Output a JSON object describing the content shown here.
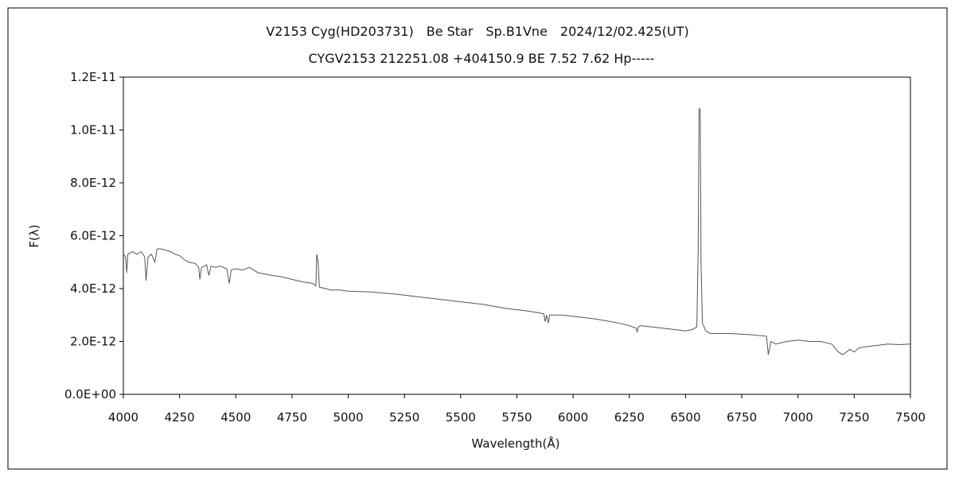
{
  "chart_data": {
    "type": "line",
    "title": "V2153 Cyg(HD203731)　Be Star　Sp.B1Vne　2024/12/02.425(UT)",
    "subtitle": "CYGV2153 212251.08 +404150.9 BE 7.52 7.62 Hp-----",
    "xlabel": "Wavelength(Å)",
    "ylabel": "F(λ)",
    "xlim": [
      4000,
      7500
    ],
    "ylim": [
      0,
      1.2e-11
    ],
    "x_ticks": [
      4000,
      4250,
      4500,
      4750,
      5000,
      5250,
      5500,
      5750,
      6000,
      6250,
      6500,
      6750,
      7000,
      7250,
      7500
    ],
    "x_tick_labels": [
      "4000",
      "4250",
      "4500",
      "4750",
      "5000",
      "5250",
      "5500",
      "5750",
      "6000",
      "6250",
      "6500",
      "6750",
      "7000",
      "7250",
      "7500"
    ],
    "y_ticks": [
      0,
      2e-12,
      4e-12,
      6e-12,
      8e-12,
      1e-11,
      1.2e-11
    ],
    "y_tick_labels": [
      "0.0E+00",
      "2.0E-12",
      "4.0E-12",
      "6.0E-12",
      "8.0E-12",
      "1.0E-11",
      "1.2E-11"
    ],
    "grid": false,
    "series": [
      {
        "color": "#555555",
        "points": [
          [
            4000,
            5.3e-12
          ],
          [
            4010,
            5.2e-12
          ],
          [
            4015,
            4.6e-12
          ],
          [
            4020,
            5.3e-12
          ],
          [
            4040,
            5.4e-12
          ],
          [
            4060,
            5.3e-12
          ],
          [
            4080,
            5.4e-12
          ],
          [
            4095,
            5.2e-12
          ],
          [
            4101,
            4.3e-12
          ],
          [
            4110,
            5.2e-12
          ],
          [
            4125,
            5.3e-12
          ],
          [
            4140,
            5e-12
          ],
          [
            4150,
            5.5e-12
          ],
          [
            4170,
            5.5e-12
          ],
          [
            4190,
            5.45e-12
          ],
          [
            4210,
            5.4e-12
          ],
          [
            4230,
            5.3e-12
          ],
          [
            4250,
            5.25e-12
          ],
          [
            4270,
            5.1e-12
          ],
          [
            4290,
            5e-12
          ],
          [
            4320,
            4.95e-12
          ],
          [
            4335,
            4.8e-12
          ],
          [
            4340,
            4.35e-12
          ],
          [
            4348,
            4.8e-12
          ],
          [
            4370,
            4.9e-12
          ],
          [
            4380,
            4.5e-12
          ],
          [
            4390,
            4.85e-12
          ],
          [
            4410,
            4.8e-12
          ],
          [
            4430,
            4.85e-12
          ],
          [
            4460,
            4.75e-12
          ],
          [
            4471,
            4.2e-12
          ],
          [
            4480,
            4.7e-12
          ],
          [
            4500,
            4.75e-12
          ],
          [
            4530,
            4.7e-12
          ],
          [
            4560,
            4.8e-12
          ],
          [
            4600,
            4.6e-12
          ],
          [
            4630,
            4.55e-12
          ],
          [
            4660,
            4.5e-12
          ],
          [
            4700,
            4.45e-12
          ],
          [
            4750,
            4.35e-12
          ],
          [
            4800,
            4.25e-12
          ],
          [
            4840,
            4.2e-12
          ],
          [
            4856,
            4.1e-12
          ],
          [
            4860,
            5.3e-12
          ],
          [
            4866,
            5e-12
          ],
          [
            4872,
            4.05e-12
          ],
          [
            4900,
            4e-12
          ],
          [
            4920,
            3.95e-12
          ],
          [
            4960,
            3.95e-12
          ],
          [
            5000,
            3.9e-12
          ],
          [
            5100,
            3.87e-12
          ],
          [
            5200,
            3.8e-12
          ],
          [
            5250,
            3.75e-12
          ],
          [
            5300,
            3.7e-12
          ],
          [
            5400,
            3.6e-12
          ],
          [
            5500,
            3.5e-12
          ],
          [
            5600,
            3.4e-12
          ],
          [
            5700,
            3.25e-12
          ],
          [
            5800,
            3.15e-12
          ],
          [
            5870,
            3.05e-12
          ],
          [
            5876,
            2.75e-12
          ],
          [
            5882,
            3e-12
          ],
          [
            5890,
            2.7e-12
          ],
          [
            5896,
            3e-12
          ],
          [
            5950,
            3e-12
          ],
          [
            6000,
            2.95e-12
          ],
          [
            6100,
            2.85e-12
          ],
          [
            6200,
            2.7e-12
          ],
          [
            6250,
            2.6e-12
          ],
          [
            6280,
            2.5e-12
          ],
          [
            6285,
            2.35e-12
          ],
          [
            6290,
            2.55e-12
          ],
          [
            6300,
            2.6e-12
          ],
          [
            6350,
            2.55e-12
          ],
          [
            6400,
            2.5e-12
          ],
          [
            6450,
            2.45e-12
          ],
          [
            6500,
            2.4e-12
          ],
          [
            6530,
            2.45e-12
          ],
          [
            6550,
            2.55e-12
          ],
          [
            6556,
            5.5e-12
          ],
          [
            6560,
            1.08e-11
          ],
          [
            6565,
            1.08e-11
          ],
          [
            6569,
            5e-12
          ],
          [
            6575,
            2.7e-12
          ],
          [
            6590,
            2.4e-12
          ],
          [
            6610,
            2.3e-12
          ],
          [
            6700,
            2.3e-12
          ],
          [
            6800,
            2.25e-12
          ],
          [
            6860,
            2.2e-12
          ],
          [
            6868,
            1.5e-12
          ],
          [
            6880,
            2e-12
          ],
          [
            6900,
            1.9e-12
          ],
          [
            6950,
            2e-12
          ],
          [
            7000,
            2.05e-12
          ],
          [
            7050,
            2e-12
          ],
          [
            7100,
            2e-12
          ],
          [
            7150,
            1.9e-12
          ],
          [
            7180,
            1.6e-12
          ],
          [
            7200,
            1.5e-12
          ],
          [
            7230,
            1.7e-12
          ],
          [
            7250,
            1.6e-12
          ],
          [
            7270,
            1.75e-12
          ],
          [
            7300,
            1.8e-12
          ],
          [
            7350,
            1.85e-12
          ],
          [
            7400,
            1.9e-12
          ],
          [
            7450,
            1.88e-12
          ],
          [
            7500,
            1.9e-12
          ]
        ]
      }
    ]
  }
}
